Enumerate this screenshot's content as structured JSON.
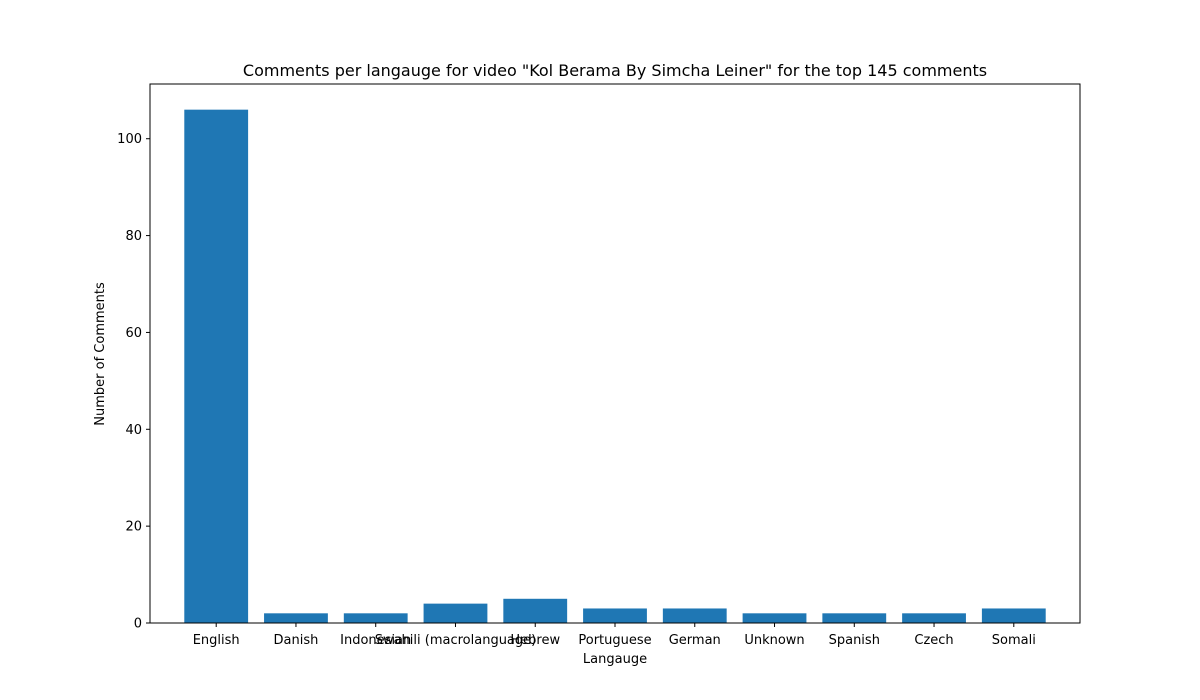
{
  "chart_data": {
    "type": "bar",
    "title": "Comments per langauge for video \"Kol Berama By Simcha Leiner\" for the top 145 comments",
    "xlabel": "Langauge",
    "ylabel": "Number of Comments",
    "categories": [
      "English",
      "Danish",
      "Indonesian",
      "Swahili (macrolanguage)",
      "Hebrew",
      "Portuguese",
      "German",
      "Unknown",
      "Spanish",
      "Czech",
      "Somali"
    ],
    "values": [
      106,
      2,
      2,
      4,
      5,
      3,
      3,
      2,
      2,
      2,
      3
    ],
    "ylim": [
      0,
      111.3
    ],
    "yticks": [
      0,
      20,
      40,
      60,
      80,
      100
    ],
    "bar_color": "#1f77b4",
    "grid": false,
    "legend": "none"
  }
}
